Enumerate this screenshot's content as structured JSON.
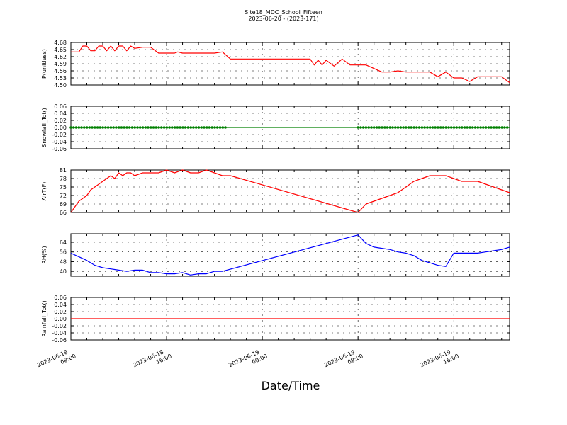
{
  "figure": {
    "title": "Site18_MDC_School_Fifteen",
    "subtitle": "2023-06-20 - (2023-171)",
    "xlabel": "Date/Time"
  },
  "chart_data": [
    {
      "type": "line",
      "ylabel": "P(unitless)",
      "ylim": [
        4.5,
        4.68
      ],
      "yticks": [
        "4.68",
        "4.65",
        "4.62",
        "4.59",
        "4.56",
        "4.53",
        "4.50"
      ],
      "color": "#ff0000",
      "grid": true,
      "series": [
        {
          "x": [
            0,
            0.5,
            0.75,
            1,
            1.25,
            1.5,
            1.75,
            2,
            2.25,
            2.5,
            2.75,
            3,
            3.25,
            3.5,
            3.75,
            4,
            4.5,
            5,
            5.5,
            6,
            6.5,
            6.7,
            7,
            7.5,
            8,
            8.5,
            9,
            9.5,
            10,
            10.5,
            11,
            11.5,
            12,
            12.5,
            13,
            13.5,
            14,
            14.5,
            15,
            15.25,
            15.5,
            15.75,
            16,
            16.5,
            17,
            17.5,
            18,
            18.5,
            19,
            19.5,
            20,
            20.5,
            21,
            21.5,
            22,
            22.5,
            23,
            23.5,
            24,
            24.5,
            25,
            25.5,
            26,
            26.5,
            27,
            27.5
          ],
          "y": [
            4.64,
            4.64,
            4.665,
            4.665,
            4.645,
            4.645,
            4.665,
            4.665,
            4.645,
            4.665,
            4.645,
            4.665,
            4.665,
            4.645,
            4.665,
            4.655,
            4.66,
            4.66,
            4.635,
            4.635,
            4.635,
            4.64,
            4.635,
            4.635,
            4.635,
            4.635,
            4.635,
            4.64,
            4.61,
            4.61,
            4.61,
            4.61,
            4.61,
            4.61,
            4.61,
            4.61,
            4.61,
            4.61,
            4.61,
            4.585,
            4.605,
            4.585,
            4.605,
            4.58,
            4.61,
            4.585,
            4.585,
            4.585,
            4.57,
            4.555,
            4.555,
            4.56,
            4.555,
            4.555,
            4.555,
            4.555,
            4.535,
            4.555,
            4.53,
            4.53,
            4.515,
            4.535,
            4.535,
            4.535,
            4.535,
            4.51
          ]
        }
      ],
      "markers": null
    },
    {
      "type": "line",
      "ylabel": "Snowfall_Tot()",
      "ylim": [
        -0.06,
        0.06
      ],
      "yticks": [
        "0.06",
        "0.04",
        "0.02",
        "0.00",
        "-0.02",
        "-0.04",
        "-0.06"
      ],
      "color": "#008000",
      "grid": true,
      "series": [
        {
          "x": [
            0,
            27.5
          ],
          "y": [
            0.0,
            0.0
          ]
        }
      ],
      "markers": {
        "ranges": [
          [
            0,
            9.75
          ],
          [
            18,
            27.5
          ]
        ],
        "step": 0.167,
        "value": 0.0
      }
    },
    {
      "type": "line",
      "ylabel": "AirT(F)",
      "ylim": [
        66,
        81
      ],
      "yticks": [
        "81",
        "78",
        "75",
        "72",
        "69",
        "66"
      ],
      "color": "#ff0000",
      "grid": true,
      "series": [
        {
          "x": [
            0,
            0.5,
            0.75,
            1,
            1.25,
            1.5,
            1.75,
            2,
            2.25,
            2.5,
            2.75,
            3,
            3.25,
            3.5,
            3.75,
            4,
            4.5,
            5,
            5.5,
            6,
            6.5,
            7,
            7.5,
            8,
            8.5,
            9,
            9.5,
            10,
            18,
            18.5,
            19,
            19.5,
            20,
            20.5,
            21,
            21.5,
            22,
            22.5,
            23,
            23.5,
            24,
            24.5,
            25,
            25.5,
            26,
            26.5,
            27,
            27.5
          ],
          "y": [
            66,
            70,
            71,
            72,
            74,
            75,
            76,
            77,
            78,
            79,
            78,
            80,
            79,
            80,
            80,
            79,
            80,
            80,
            80,
            81,
            80,
            81,
            80,
            80,
            81,
            80,
            79,
            79,
            66,
            69,
            70,
            71,
            72,
            73,
            75,
            77,
            78,
            79,
            79,
            79,
            78,
            77,
            77,
            77,
            76,
            75,
            74,
            73
          ]
        }
      ],
      "markers": null
    },
    {
      "type": "line",
      "ylabel": "RH(%)",
      "ylim": [
        36,
        71
      ],
      "yticks": [
        "64",
        "56",
        "48",
        "40"
      ],
      "color": "#0000ff",
      "grid": true,
      "series": [
        {
          "x": [
            0,
            0.5,
            1,
            1.5,
            2,
            2.5,
            3,
            3.5,
            4,
            4.5,
            5,
            5.5,
            6,
            6.5,
            7,
            7.5,
            8,
            8.5,
            9,
            9.5,
            18,
            18.5,
            19,
            19.5,
            20,
            20.5,
            21,
            21.5,
            22,
            22.5,
            23,
            23.5,
            24,
            24.5,
            25,
            25.5,
            26,
            26.5,
            27,
            27.5
          ],
          "y": [
            55,
            52,
            49,
            45,
            43,
            42,
            41,
            40,
            41,
            41,
            39,
            39,
            38,
            38,
            39,
            37,
            38,
            38,
            40,
            40,
            70,
            63,
            60,
            59,
            58,
            56,
            55,
            53,
            49,
            47,
            45,
            44,
            55,
            55,
            55,
            55,
            56,
            57,
            58,
            60
          ]
        }
      ],
      "markers": null
    },
    {
      "type": "line",
      "ylabel": "Rainfall_Tot()",
      "ylim": [
        -0.06,
        0.06
      ],
      "yticks": [
        "0.06",
        "0.04",
        "0.02",
        "0.00",
        "-0.02",
        "-0.04",
        "-0.06"
      ],
      "color": "#ff0000",
      "grid": true,
      "series": [
        {
          "x": [
            0,
            27.5
          ],
          "y": [
            0.0,
            0.0
          ]
        }
      ],
      "markers": null
    }
  ],
  "xaxis": {
    "xlim": [
      0,
      27.5
    ],
    "ticks": [
      {
        "value": 0,
        "line1": "2023-06-18",
        "line2": "08:00"
      },
      {
        "value": 6,
        "line1": "2023-06-18",
        "line2": "16:00"
      },
      {
        "value": 12,
        "line1": "2023-06-19",
        "line2": "00:00"
      },
      {
        "value": 18,
        "line1": "2023-06-19",
        "line2": "08:00"
      },
      {
        "value": 24,
        "line1": "2023-06-19",
        "line2": "16:00"
      }
    ]
  }
}
